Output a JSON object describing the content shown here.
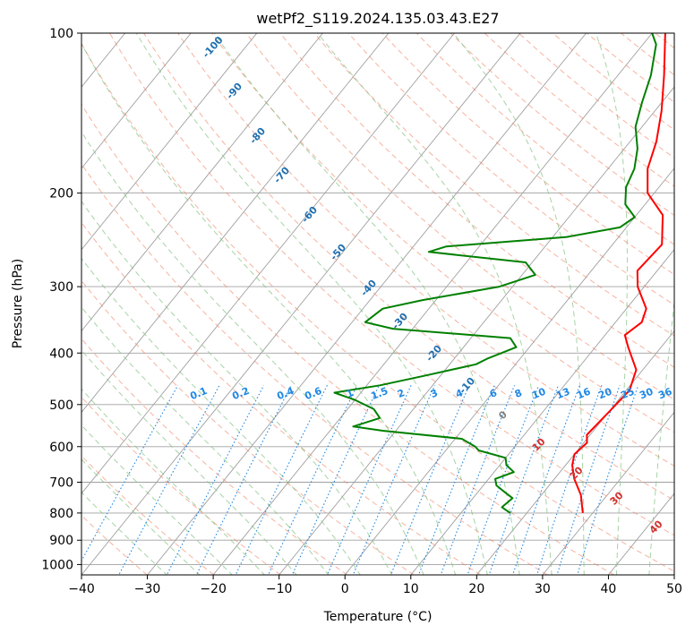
{
  "chart_data": {
    "type": "line",
    "title": "wetPf2_S119.2024.135.03.43.E27",
    "xlabel": "Temperature (°C)",
    "ylabel": "Pressure (hPa)",
    "xlim": [
      -40,
      50
    ],
    "ylim": [
      1050,
      100
    ],
    "y_scale": "log",
    "grid": true,
    "x_ticks": [
      -40,
      -30,
      -20,
      -10,
      0,
      10,
      20,
      30,
      40,
      50
    ],
    "x_tick_labels": [
      "−40",
      "−30",
      "−20",
      "−10",
      "0",
      "10",
      "20",
      "30",
      "40",
      "50"
    ],
    "y_ticks": [
      100,
      200,
      300,
      400,
      500,
      600,
      700,
      800,
      900,
      1000
    ],
    "y_tick_labels": [
      "100",
      "200",
      "300",
      "400",
      "500",
      "600",
      "700",
      "800",
      "900",
      "1000"
    ],
    "series": [
      {
        "color": "#ff0000",
        "points": [
          [
            28.5,
            800
          ],
          [
            26,
            740
          ],
          [
            23,
            690
          ],
          [
            21,
            650
          ],
          [
            20,
            620
          ],
          [
            20.5,
            590
          ],
          [
            19.5,
            570
          ],
          [
            20,
            520
          ],
          [
            20.5,
            470
          ],
          [
            19,
            430
          ],
          [
            15,
            390
          ],
          [
            13,
            370
          ],
          [
            14,
            350
          ],
          [
            13,
            330
          ],
          [
            9,
            300
          ],
          [
            7,
            280
          ],
          [
            7.5,
            250
          ],
          [
            4,
            220
          ],
          [
            -1,
            200
          ],
          [
            -4,
            180
          ],
          [
            -6,
            160
          ],
          [
            -9,
            140
          ],
          [
            -13,
            120
          ],
          [
            -18,
            100
          ]
        ]
      },
      {
        "color": "#008000",
        "points": [
          [
            17.5,
            800
          ],
          [
            15.5,
            780
          ],
          [
            16,
            750
          ],
          [
            14,
            730
          ],
          [
            12,
            710
          ],
          [
            11,
            690
          ],
          [
            13,
            670
          ],
          [
            11,
            650
          ],
          [
            10,
            630
          ],
          [
            5,
            610
          ],
          [
            4,
            600
          ],
          [
            1,
            580
          ],
          [
            -12,
            560
          ],
          [
            -17,
            550
          ],
          [
            -14,
            530
          ],
          [
            -16,
            510
          ],
          [
            -20,
            490
          ],
          [
            -24,
            475
          ],
          [
            -18,
            460
          ],
          [
            -12,
            440
          ],
          [
            -6,
            420
          ],
          [
            -5,
            410
          ],
          [
            -2,
            390
          ],
          [
            -4,
            375
          ],
          [
            -23,
            360
          ],
          [
            -28,
            350
          ],
          [
            -27,
            330
          ],
          [
            -22,
            318
          ],
          [
            -12,
            300
          ],
          [
            -8,
            285
          ],
          [
            -11,
            270
          ],
          [
            -27,
            258
          ],
          [
            -25,
            252
          ],
          [
            -8,
            242
          ],
          [
            -1,
            232
          ],
          [
            0,
            222
          ],
          [
            -3,
            210
          ],
          [
            -5,
            195
          ],
          [
            -6,
            180
          ],
          [
            -8,
            165
          ],
          [
            -11,
            150
          ],
          [
            -13,
            135
          ],
          [
            -15,
            120
          ],
          [
            -18,
            105
          ],
          [
            -20,
            100
          ]
        ]
      }
    ],
    "dry_adiabat_labels": [
      "-100",
      "-90",
      "-80",
      "-70",
      "-60",
      "-50",
      "-40",
      "-30",
      "-20",
      "-10"
    ],
    "moist_adiabat_labels": [
      "0",
      "10",
      "20",
      "30",
      "40"
    ],
    "mixing_ratio_labels": [
      "0.1",
      "0.2",
      "0.4",
      "0.6",
      "1",
      "1.5",
      "2",
      "3",
      "4",
      "6",
      "8",
      "10",
      "13",
      "16",
      "20",
      "25",
      "30",
      "36"
    ],
    "colors": {
      "temperature": "#ff0000",
      "dewpoint": "#008000",
      "isotherm": "#a0a0a0",
      "dry_adiabat": "#f08060",
      "moist_adiabat": "#80c080",
      "mixing_ratio": "#1e88e5",
      "dry_label": "#1f6fb0",
      "moist_label": "#d32f2f"
    }
  }
}
